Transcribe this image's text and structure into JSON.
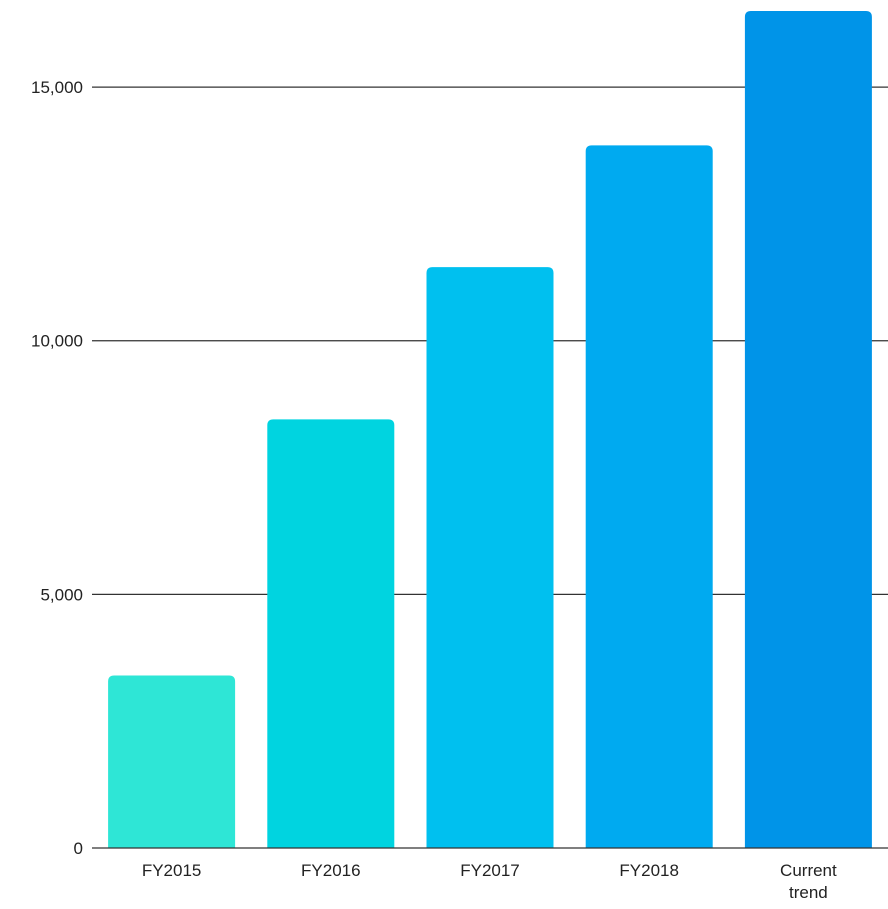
{
  "chart_data": {
    "type": "bar",
    "categories": [
      "FY2015",
      "FY2016",
      "FY2017",
      "FY2018",
      "Current trend"
    ],
    "values": [
      3400,
      8450,
      11450,
      13850,
      16500
    ],
    "colors": [
      "#2ee6d6",
      "#00d4e0",
      "#00c0ef",
      "#00aaf0",
      "#0094e8"
    ],
    "title": "",
    "xlabel": "",
    "ylabel": "",
    "ylim": [
      0,
      16500
    ],
    "yticks": [
      0,
      5000,
      10000,
      15000
    ],
    "ytick_labels": [
      "0",
      "5,000",
      "10,000",
      "15,000"
    ],
    "grid": true
  }
}
